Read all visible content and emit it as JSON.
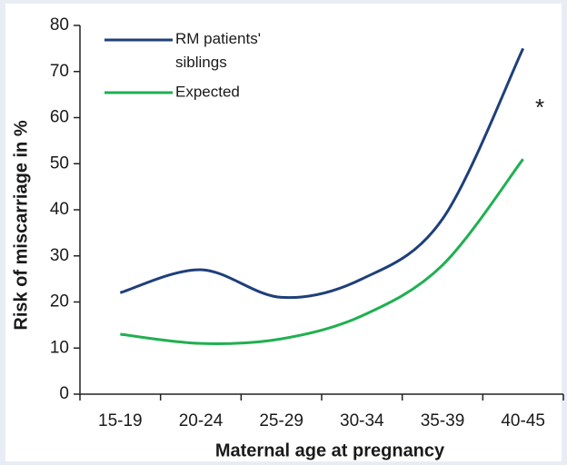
{
  "chart_data": {
    "type": "line",
    "x_label": "Maternal age at pregnancy",
    "y_label": "Risk of miscarriage in %",
    "categories": [
      "15-19",
      "20-24",
      "25-29",
      "30-34",
      "35-39",
      "40-45"
    ],
    "series": [
      {
        "name": "RM patients' siblings",
        "color": "#1f3f7a",
        "values": [
          22,
          27,
          21,
          25,
          38,
          75
        ]
      },
      {
        "name": "Expected",
        "color": "#1fb050",
        "values": [
          13,
          11,
          12,
          17,
          28,
          51
        ]
      }
    ],
    "ylim": [
      0,
      80
    ],
    "yticks": [
      0,
      10,
      20,
      30,
      40,
      50,
      60,
      70,
      80
    ],
    "annotation": "*",
    "grid": false
  }
}
